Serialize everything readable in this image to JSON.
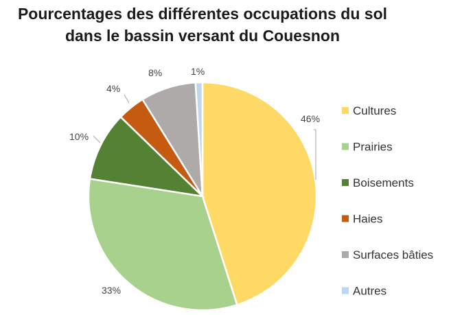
{
  "chart_data": {
    "type": "pie",
    "title_lines": [
      "Pourcentages des différentes occupations du sol",
      "dans le bassin versant du Couesnon"
    ],
    "categories": [
      "Cultures",
      "Prairies",
      "Boisements",
      "Haies",
      "Surfaces bâties",
      "Autres"
    ],
    "values": [
      46,
      33,
      10,
      4,
      8,
      1
    ],
    "labels": [
      "46%",
      "33%",
      "10%",
      "4%",
      "8%",
      "1%"
    ],
    "colors": [
      "#FFD966",
      "#A9D18E",
      "#548235",
      "#C55A11",
      "#AEAAAA",
      "#BDD7EE"
    ],
    "legend_position": "right"
  }
}
